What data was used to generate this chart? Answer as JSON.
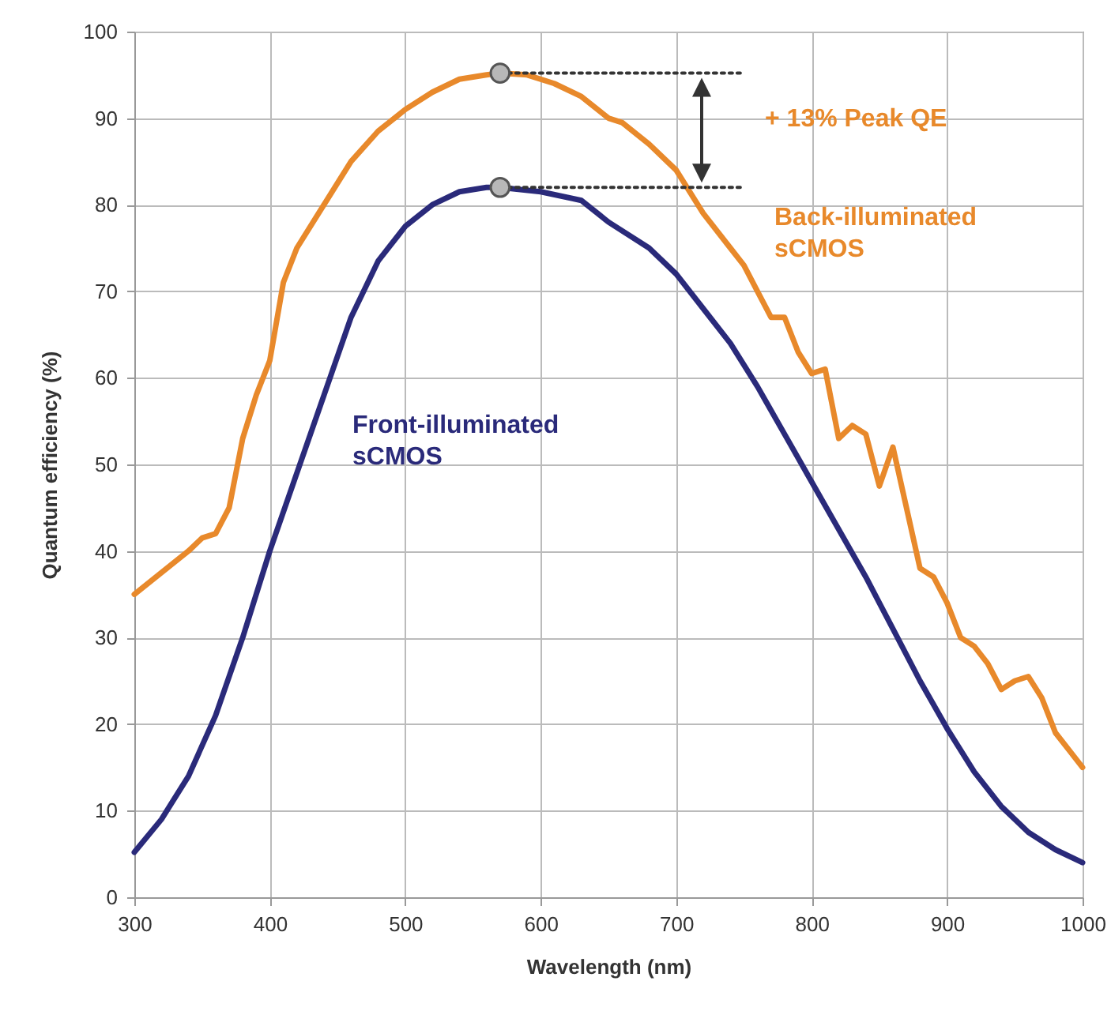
{
  "chart_data": {
    "type": "line",
    "xlabel": "Wavelength (nm)",
    "ylabel": "Quantum efficiency (%)",
    "xlim": [
      300,
      1000
    ],
    "xticks": [
      300,
      400,
      500,
      600,
      700,
      800,
      900,
      {
        "value": 1000,
        "label": "1000"
      }
    ],
    "ylim": [
      0,
      100
    ],
    "yticks": [
      0,
      10,
      20,
      30,
      40,
      50,
      60,
      70,
      80,
      90,
      100
    ],
    "grid": true,
    "marker": "none",
    "line_style": "solid",
    "annotations": [
      "+ 13% Peak QE"
    ],
    "series": [
      {
        "name": "Back-illuminated sCMOS",
        "color": "#e8892b",
        "x": [
          300,
          320,
          340,
          350,
          360,
          370,
          380,
          390,
          400,
          410,
          420,
          440,
          460,
          480,
          500,
          520,
          540,
          560,
          570,
          590,
          610,
          630,
          650,
          660,
          680,
          700,
          720,
          740,
          750,
          760,
          770,
          780,
          790,
          800,
          810,
          820,
          830,
          840,
          850,
          860,
          870,
          880,
          890,
          900,
          910,
          920,
          930,
          940,
          950,
          960,
          970,
          980,
          990,
          1000
        ],
        "values": [
          35,
          37.5,
          40,
          41.5,
          42,
          45,
          53,
          58,
          62,
          71,
          75,
          80,
          85,
          88.5,
          91,
          93,
          94.5,
          95,
          95.2,
          95,
          94,
          92.5,
          90,
          89.5,
          87,
          84,
          79,
          75,
          73,
          70,
          67,
          67,
          63,
          60.5,
          61,
          53,
          54.5,
          53.5,
          47.5,
          52,
          45,
          38,
          37,
          34,
          30,
          29,
          27,
          24,
          25,
          25.5,
          23,
          19,
          17,
          15
        ]
      },
      {
        "name": "Front-illuminated sCMOS",
        "color": "#2a2a7a",
        "x": [
          300,
          320,
          340,
          360,
          380,
          400,
          420,
          440,
          460,
          480,
          500,
          520,
          540,
          560,
          570,
          600,
          630,
          650,
          680,
          700,
          720,
          740,
          760,
          780,
          800,
          820,
          840,
          860,
          880,
          900,
          920,
          940,
          960,
          980,
          1000
        ],
        "values": [
          5.2,
          9,
          14,
          21,
          30,
          40,
          49,
          58,
          67,
          73.5,
          77.5,
          80,
          81.5,
          82,
          82,
          81.5,
          80.5,
          78,
          75,
          72,
          68,
          64,
          59,
          53.5,
          48,
          42.5,
          37,
          31,
          25,
          19.5,
          14.5,
          10.5,
          7.5,
          5.5,
          4
        ]
      },
      {
        "type": "line",
        "color": "#333333",
        "line_style": "dotted",
        "x": [
          570,
          750
        ],
        "values": [
          95.2,
          95.2
        ]
      },
      {
        "type": "line",
        "color": "#333333",
        "line_style": "dotted",
        "x": [
          570,
          750
        ],
        "values": [
          82,
          82
        ]
      },
      {
        "type": "scatter",
        "color": "#b8b8b8",
        "marker": "circle",
        "x": [
          570,
          570
        ],
        "values": [
          95.2,
          82
        ]
      }
    ]
  }
}
